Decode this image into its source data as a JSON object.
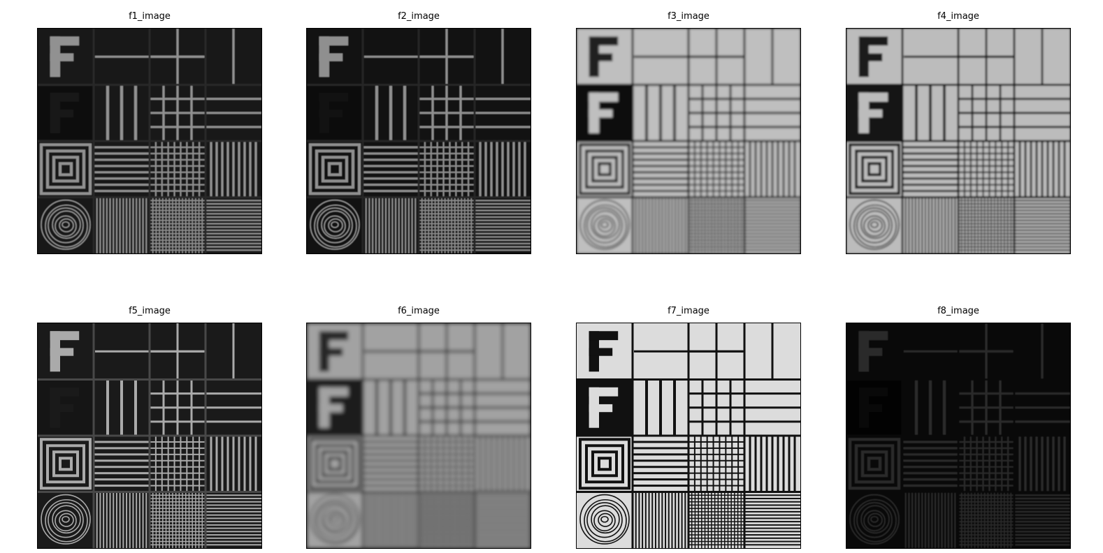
{
  "panels": [
    {
      "id": "f1",
      "title": "f1_image",
      "style": "edge"
    },
    {
      "id": "f2",
      "title": "f2_image",
      "style": "edge2"
    },
    {
      "id": "f3",
      "title": "f3_image",
      "style": "blur"
    },
    {
      "id": "f4",
      "title": "f4_image",
      "style": "blur2"
    },
    {
      "id": "f5",
      "title": "f5_image",
      "style": "outline"
    },
    {
      "id": "f6",
      "title": "f6_image",
      "style": "soft"
    },
    {
      "id": "f7",
      "title": "f7_image",
      "style": "original"
    },
    {
      "id": "f8",
      "title": "f8_image",
      "style": "dark"
    }
  ]
}
